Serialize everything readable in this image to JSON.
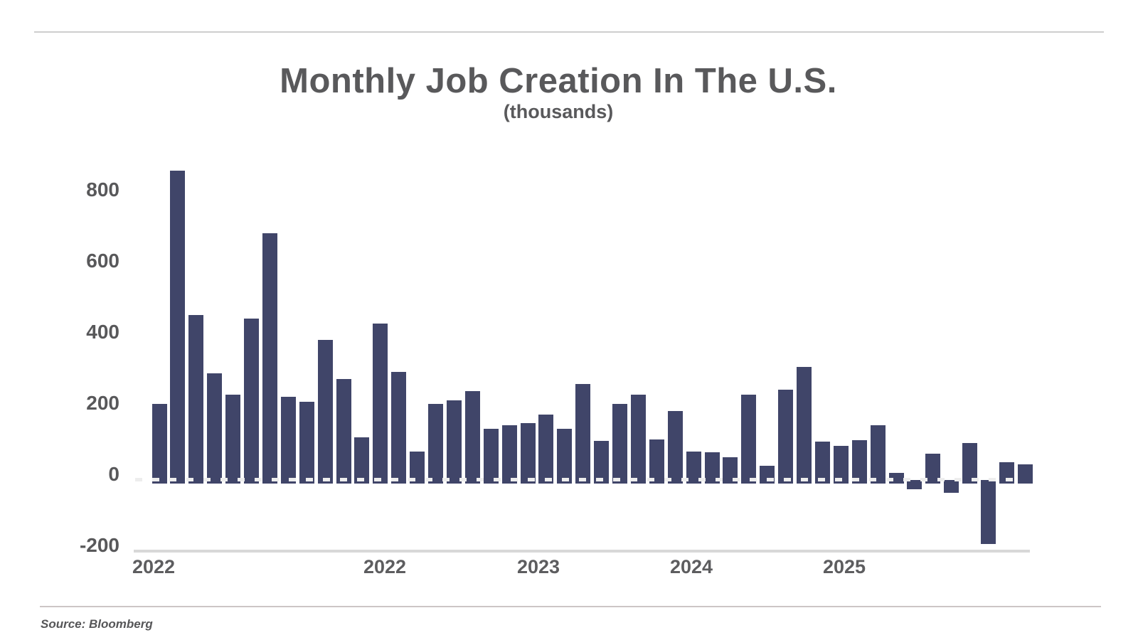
{
  "chart_data": {
    "type": "bar",
    "title": "Monthly Job Creation In The U.S.",
    "subtitle": "(thousands)",
    "ylabel": "",
    "xlabel": "",
    "ylim": [
      -200,
      900
    ],
    "grid": false,
    "legend": "none",
    "zero_line_style": "white dashed line at y=0",
    "baseline_style": "solid light gray line at y=-200 level",
    "bar_color": "#404569",
    "values": [
      215,
      870,
      465,
      300,
      240,
      455,
      695,
      235,
      220,
      395,
      285,
      120,
      440,
      305,
      80,
      215,
      225,
      250,
      145,
      155,
      160,
      185,
      145,
      270,
      110,
      215,
      240,
      115,
      195,
      80,
      78,
      65,
      240,
      40,
      255,
      318,
      108,
      97,
      113,
      155,
      20,
      -15,
      75,
      -25,
      105,
      -170,
      50,
      45
    ],
    "x_tick_labels": [
      "2022",
      "2022",
      "2023",
      "2024",
      "2025"
    ],
    "y_tick_labels": [
      "800",
      "600",
      "400",
      "200",
      "0",
      "-200"
    ],
    "y_tick_values": [
      800,
      600,
      400,
      200,
      0,
      -200
    ]
  },
  "source": {
    "label": "Source: Bloomberg"
  },
  "colors": {
    "bar": "#404569",
    "text": "#59595b",
    "tick_text": "#58585a",
    "zero_dash": "#ededed",
    "axis_line": "#d8d8d8",
    "divider": "#cecece",
    "background": "#ffffff"
  }
}
